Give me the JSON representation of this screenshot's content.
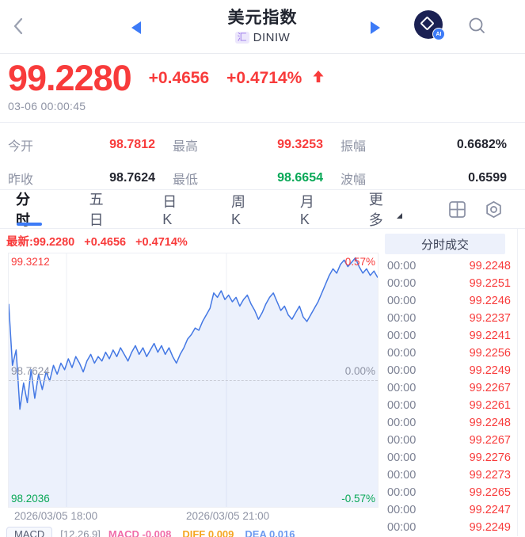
{
  "colors": {
    "up": "#f83b3b",
    "down": "#09a857",
    "accent_blue": "#3d7bf7",
    "gray_text": "#8f94a5",
    "line_blue": "#4478e4"
  },
  "header": {
    "title": "美元指数",
    "market_badge": "汇",
    "symbol": "DINIW",
    "logo_badge": "AI"
  },
  "price": {
    "last": "99.2280",
    "change": "+0.4656",
    "change_pct": "+0.4714%",
    "timestamp": "03-06 00:00:45"
  },
  "stats": {
    "rows": [
      [
        {
          "label": "今开",
          "value": "98.7812",
          "color": "up"
        },
        {
          "label": "最高",
          "value": "99.3253",
          "color": "up"
        },
        {
          "label": "振幅",
          "value": "0.6682%",
          "color": "dark"
        }
      ],
      [
        {
          "label": "昨收",
          "value": "98.7624",
          "color": "dark"
        },
        {
          "label": "最低",
          "value": "98.6654",
          "color": "down"
        },
        {
          "label": "波幅",
          "value": "0.6599",
          "color": "dark"
        }
      ]
    ]
  },
  "tabs": {
    "items": [
      "分时",
      "五日",
      "日K",
      "周K",
      "月K",
      "更多"
    ],
    "active": "分时"
  },
  "chart": {
    "legend": {
      "latest": "最新:99.2280",
      "change": "+0.4656",
      "change_pct": "+0.4714%"
    },
    "y_left": [
      "99.3212",
      "98.7624",
      "98.2036"
    ],
    "y_right": [
      "0.57%",
      "0.00%",
      "-0.57%"
    ],
    "x_labels": [
      "2026/03/05 18:00",
      "2026/03/05 21:00"
    ]
  },
  "chart_data": {
    "type": "line",
    "title": "美元指数 分时走势",
    "ylim": [
      98.185,
      99.34
    ],
    "baseline": 98.7624,
    "y_axis_labels": [
      99.3212,
      98.7624,
      98.2036
    ],
    "pct_axis_labels": [
      "0.57%",
      "0.00%",
      "-0.57%"
    ],
    "x_tick_labels": [
      "2026/03/05 18:00",
      "2026/03/05 21:00"
    ],
    "grid": true,
    "prices": [
      99.11,
      98.83,
      98.9,
      98.63,
      98.75,
      98.66,
      98.81,
      98.68,
      98.79,
      98.72,
      98.8,
      98.76,
      98.83,
      98.79,
      98.84,
      98.81,
      98.86,
      98.82,
      98.87,
      98.84,
      98.8,
      98.85,
      98.88,
      98.84,
      98.87,
      98.85,
      98.89,
      98.86,
      98.9,
      98.87,
      98.91,
      98.88,
      98.85,
      98.89,
      98.92,
      98.88,
      98.91,
      98.87,
      98.9,
      98.93,
      98.89,
      98.92,
      98.88,
      98.91,
      98.87,
      98.84,
      98.88,
      98.91,
      98.95,
      98.97,
      99.0,
      98.99,
      99.03,
      99.06,
      99.09,
      99.16,
      99.14,
      99.17,
      99.13,
      99.15,
      99.12,
      99.14,
      99.1,
      99.13,
      99.15,
      99.11,
      99.08,
      99.04,
      99.07,
      99.11,
      99.14,
      99.16,
      99.12,
      99.08,
      99.1,
      99.06,
      99.04,
      99.07,
      99.1,
      99.05,
      99.03,
      99.06,
      99.09,
      99.12,
      99.16,
      99.2,
      99.24,
      99.27,
      99.25,
      99.29,
      99.31,
      99.28,
      99.3,
      99.32,
      99.28,
      99.25,
      99.27,
      99.24,
      99.26,
      99.23
    ]
  },
  "macd": {
    "badge": "MACD",
    "params": "[12,26,9]",
    "items": [
      {
        "label": "MACD",
        "value": "-0.008",
        "color": "pink"
      },
      {
        "label": "DIFF",
        "value": "0.009",
        "color": "orange"
      },
      {
        "label": "DEA",
        "value": "0.016",
        "color": "blue"
      }
    ]
  },
  "sales": {
    "title": "分时成交",
    "time": "00:00",
    "rows": [
      {
        "time": "00:00",
        "price": "99.2248"
      },
      {
        "time": "00:00",
        "price": "99.2251"
      },
      {
        "time": "00:00",
        "price": "99.2246"
      },
      {
        "time": "00:00",
        "price": "99.2237"
      },
      {
        "time": "00:00",
        "price": "99.2241"
      },
      {
        "time": "00:00",
        "price": "99.2256"
      },
      {
        "time": "00:00",
        "price": "99.2249"
      },
      {
        "time": "00:00",
        "price": "99.2267"
      },
      {
        "time": "00:00",
        "price": "99.2261"
      },
      {
        "time": "00:00",
        "price": "99.2248"
      },
      {
        "time": "00:00",
        "price": "99.2267"
      },
      {
        "time": "00:00",
        "price": "99.2276"
      },
      {
        "time": "00:00",
        "price": "99.2273"
      },
      {
        "time": "00:00",
        "price": "99.2265"
      },
      {
        "time": "00:00",
        "price": "99.2247"
      },
      {
        "time": "00:00",
        "price": "99.2249"
      }
    ]
  }
}
